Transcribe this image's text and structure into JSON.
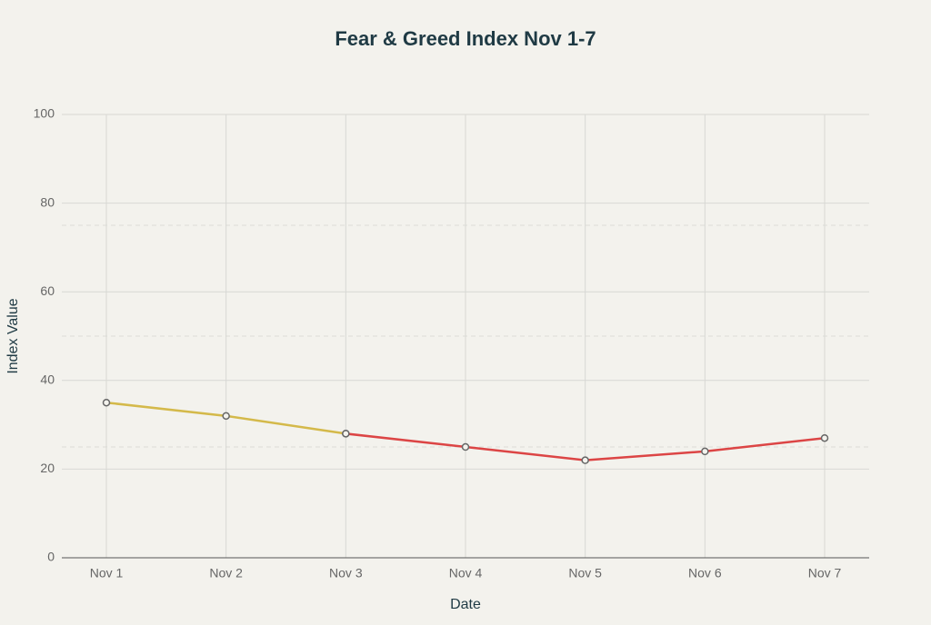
{
  "chart_data": {
    "type": "line",
    "title": "Fear & Greed Index Nov 1-7",
    "x_label": "Date",
    "y_label": "Index Value",
    "categories": [
      "Nov 1",
      "Nov 2",
      "Nov 3",
      "Nov 4",
      "Nov 5",
      "Nov 6",
      "Nov 7"
    ],
    "series": [
      {
        "color": "#d4b94a",
        "values": [
          35,
          32,
          28,
          null,
          null,
          null,
          null
        ]
      },
      {
        "color": "#dc4545",
        "values": [
          null,
          null,
          28,
          25,
          22,
          24,
          27
        ]
      }
    ],
    "reference_lines": [
      25,
      50,
      75
    ],
    "ylim": [
      0,
      100
    ],
    "yticks": [
      0,
      20,
      40,
      60,
      80,
      100
    ],
    "grid": true
  }
}
